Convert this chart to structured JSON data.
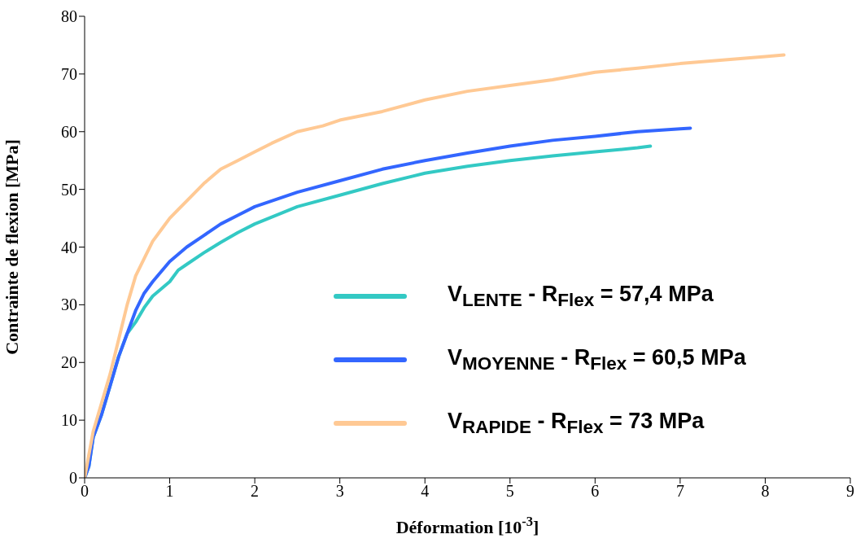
{
  "chart_data": {
    "type": "line",
    "xlabel": "Déformation [10$^{-3}$]",
    "ylabel": "Contrainte de flexion [MPa]",
    "xlim": [
      0,
      9
    ],
    "xticks": [
      0,
      1,
      2,
      3,
      4,
      5,
      6,
      7,
      8,
      9
    ],
    "ylim": [
      0,
      80
    ],
    "yticks": [
      0,
      10,
      20,
      30,
      40,
      50,
      60,
      70,
      80
    ],
    "grid": false,
    "legend": "right",
    "marker": "none",
    "line_style": "solid",
    "series": [
      {
        "name": "V$_{LENTE}$ - R$_{Flex}$ = 57,4 MPa",
        "color": "#33c9c4",
        "x": [
          0,
          0.05,
          0.1,
          0.2,
          0.3,
          0.4,
          0.5,
          0.6,
          0.7,
          0.8,
          1.0,
          1.1,
          1.2,
          1.4,
          1.6,
          1.8,
          2.0,
          2.5,
          3.0,
          3.5,
          4.0,
          4.5,
          5.0,
          5.5,
          6.0,
          6.5,
          6.65
        ],
        "values": [
          0,
          2,
          7,
          11,
          16,
          21,
          25,
          27,
          29.5,
          31.5,
          34,
          36,
          37,
          39,
          40.8,
          42.5,
          44,
          47,
          49,
          51,
          52.8,
          54,
          55,
          55.8,
          56.5,
          57.2,
          57.5
        ]
      },
      {
        "name": "V$_{MOYENNE}$ - R$_{Flex}$ = 60,5 MPa",
        "color": "#3366ff",
        "x": [
          0,
          0.05,
          0.1,
          0.2,
          0.3,
          0.4,
          0.5,
          0.6,
          0.7,
          0.8,
          1.0,
          1.2,
          1.4,
          1.6,
          1.8,
          2.0,
          2.5,
          3.0,
          3.5,
          4.0,
          4.5,
          5.0,
          5.5,
          6.0,
          6.5,
          7.0,
          7.12
        ],
        "values": [
          0,
          2,
          7,
          11,
          16,
          21,
          25,
          29,
          32,
          34,
          37.5,
          40,
          42,
          44,
          45.5,
          47,
          49.5,
          51.5,
          53.5,
          55,
          56.3,
          57.5,
          58.5,
          59.2,
          60,
          60.5,
          60.6
        ]
      },
      {
        "name": "V$_{RAPIDE}$ - R$_{Flex}$ = 73 MPa",
        "color": "#ffc994",
        "x": [
          0,
          0.1,
          0.2,
          0.3,
          0.4,
          0.5,
          0.6,
          0.7,
          0.8,
          0.9,
          1.0,
          1.2,
          1.4,
          1.6,
          1.8,
          2.0,
          2.2,
          2.5,
          2.8,
          3.0,
          3.5,
          4.0,
          4.5,
          5.0,
          5.5,
          6.0,
          6.5,
          7.0,
          7.5,
          8.0,
          8.22
        ],
        "values": [
          0,
          8,
          13,
          18,
          24,
          30,
          35,
          38,
          41,
          43,
          45,
          48,
          51,
          53.5,
          55,
          56.5,
          58,
          60,
          61,
          62,
          63.5,
          65.5,
          67,
          68,
          69,
          70.3,
          71,
          71.8,
          72.4,
          73,
          73.3
        ]
      }
    ]
  }
}
